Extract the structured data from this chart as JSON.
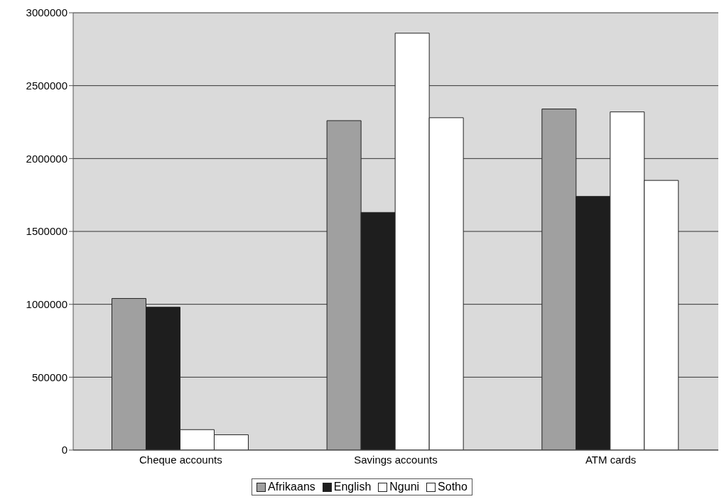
{
  "chart_data": {
    "type": "bar",
    "categories": [
      "Cheque accounts",
      "Savings accounts",
      "ATM cards"
    ],
    "series": [
      {
        "name": "Afrikaans",
        "color": "#a0a0a0",
        "values": [
          1040000,
          2260000,
          2340000
        ]
      },
      {
        "name": "English",
        "color": "#1e1e1e",
        "values": [
          980000,
          1630000,
          1740000
        ]
      },
      {
        "name": "Nguni",
        "color": "#ffffff",
        "values": [
          140000,
          2860000,
          2320000
        ]
      },
      {
        "name": "Sotho",
        "color": "#ffffff",
        "values": [
          105000,
          2280000,
          1850000
        ]
      }
    ],
    "ylim": [
      0,
      3000000
    ],
    "yticks": [
      0,
      500000,
      1000000,
      1500000,
      2000000,
      2500000,
      3000000
    ],
    "grid": "y",
    "legend": "bottom"
  }
}
